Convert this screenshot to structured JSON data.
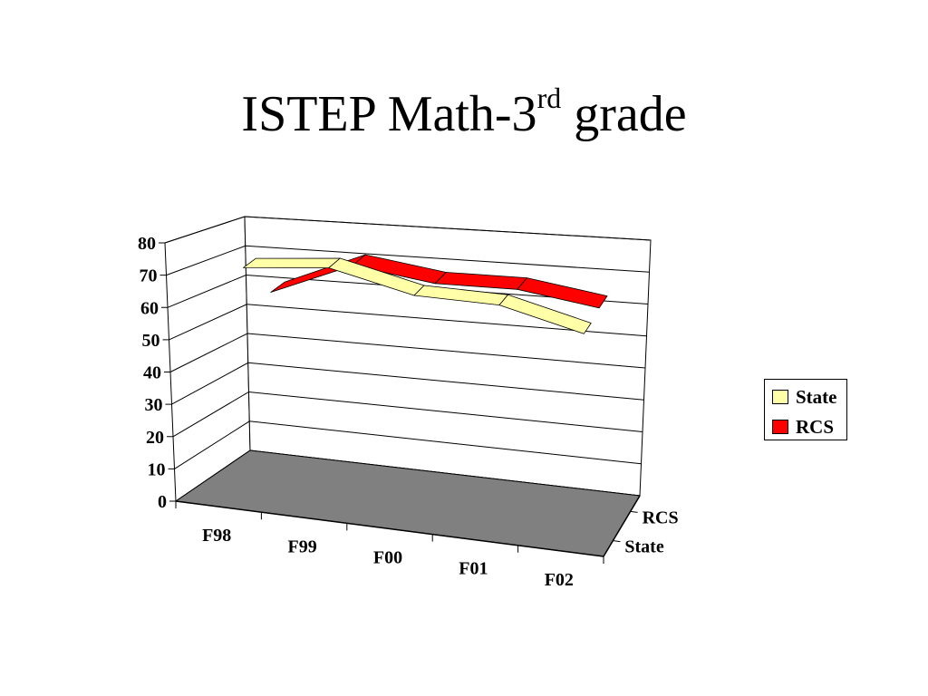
{
  "title": {
    "main": "ISTEP Math-3",
    "superscript": "rd",
    "suffix": " grade"
  },
  "colors": {
    "state": "#FFFFA8",
    "rcs": "#FF0000",
    "floor": "#808080",
    "grid": "#000000"
  },
  "chart_data": {
    "type": "line",
    "style": "3d-ribbon",
    "categories": [
      "F98",
      "F99",
      "F00",
      "F01",
      "F02"
    ],
    "series": [
      {
        "name": "State",
        "values": [
          74,
          76,
          69,
          68,
          61
        ],
        "color": "#FFFFA8"
      },
      {
        "name": "RCS",
        "values": [
          59,
          70,
          66,
          66,
          62
        ],
        "color": "#FF0000"
      }
    ],
    "depth_labels": [
      "RCS",
      "State"
    ],
    "yticks": [
      0,
      10,
      20,
      30,
      40,
      50,
      60,
      70,
      80
    ],
    "ylim": [
      0,
      80
    ],
    "grid": true,
    "legend": {
      "position": "right",
      "entries": [
        "State",
        "RCS"
      ]
    },
    "xlabel": "",
    "ylabel": ""
  }
}
